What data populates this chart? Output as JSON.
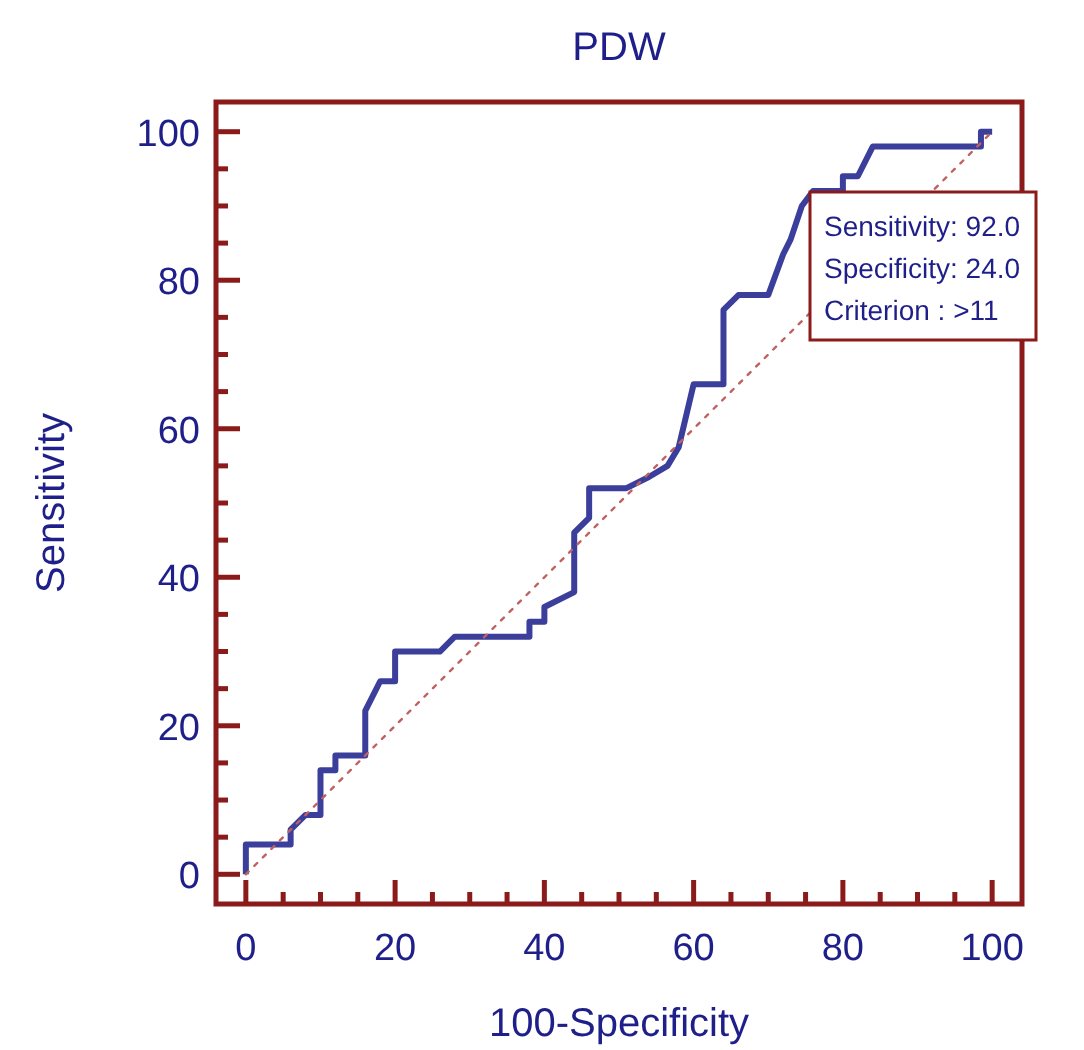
{
  "chart_data": {
    "type": "line",
    "title": "PDW",
    "xlabel": "100-Specificity",
    "ylabel": "Sensitivity",
    "xlim": [
      -4,
      104
    ],
    "ylim": [
      -4,
      104
    ],
    "xticks": [
      0,
      {
        "value": 5,
        "label": null
      },
      {
        "value": 10,
        "label": null
      },
      {
        "value": 15,
        "label": null
      },
      20,
      {
        "value": 25,
        "label": null
      },
      {
        "value": 30,
        "label": null
      },
      {
        "value": 35,
        "label": null
      },
      40,
      {
        "value": 45,
        "label": null
      },
      {
        "value": 50,
        "label": null
      },
      {
        "value": 55,
        "label": null
      },
      60,
      {
        "value": 65,
        "label": null
      },
      {
        "value": 70,
        "label": null
      },
      {
        "value": 75,
        "label": null
      },
      80,
      {
        "value": 85,
        "label": null
      },
      {
        "value": 90,
        "label": null
      },
      {
        "value": 95,
        "label": null
      },
      100
    ],
    "yticks": [
      0,
      {
        "value": 5,
        "label": null
      },
      {
        "value": 10,
        "label": null
      },
      {
        "value": 15,
        "label": null
      },
      20,
      {
        "value": 25,
        "label": null
      },
      {
        "value": 30,
        "label": null
      },
      {
        "value": 35,
        "label": null
      },
      40,
      {
        "value": 45,
        "label": null
      },
      {
        "value": 50,
        "label": null
      },
      {
        "value": 55,
        "label": null
      },
      60,
      {
        "value": 65,
        "label": null
      },
      {
        "value": 70,
        "label": null
      },
      {
        "value": 75,
        "label": null
      },
      80,
      {
        "value": 85,
        "label": null
      },
      {
        "value": 90,
        "label": null
      },
      {
        "value": 95,
        "label": null
      },
      100
    ],
    "grid": false,
    "marker": "none",
    "annotations": [
      "Sensitivity: 92.0",
      "Specificity: 24.0",
      "Criterion : >11"
    ],
    "series": [
      {
        "color": "#3b3f9b",
        "line_style": "solid",
        "x": [
          0,
          0,
          6,
          6,
          8,
          10,
          10,
          12,
          12,
          16,
          16,
          18,
          18,
          20,
          20,
          26,
          28,
          38,
          38,
          40,
          40,
          44,
          44,
          46,
          46,
          51,
          54,
          56.5,
          58,
          60,
          64,
          64,
          66,
          70,
          72,
          73,
          74.5,
          76,
          80,
          80,
          82,
          84,
          98.5,
          98.5,
          100
        ],
        "values": [
          0,
          4,
          4,
          6,
          8,
          8,
          14,
          14,
          16,
          16,
          22,
          26,
          26,
          26,
          30,
          30,
          32,
          32,
          34,
          34,
          36,
          38,
          46,
          48,
          52,
          52,
          53.5,
          55,
          57.5,
          66,
          66,
          76,
          78,
          78,
          83.5,
          85.5,
          90,
          92,
          92,
          94,
          94,
          98,
          98,
          100,
          100
        ]
      },
      {
        "color": "#c06060",
        "line_style": "dotted",
        "x": [
          0,
          100
        ],
        "values": [
          0,
          100
        ]
      }
    ]
  }
}
